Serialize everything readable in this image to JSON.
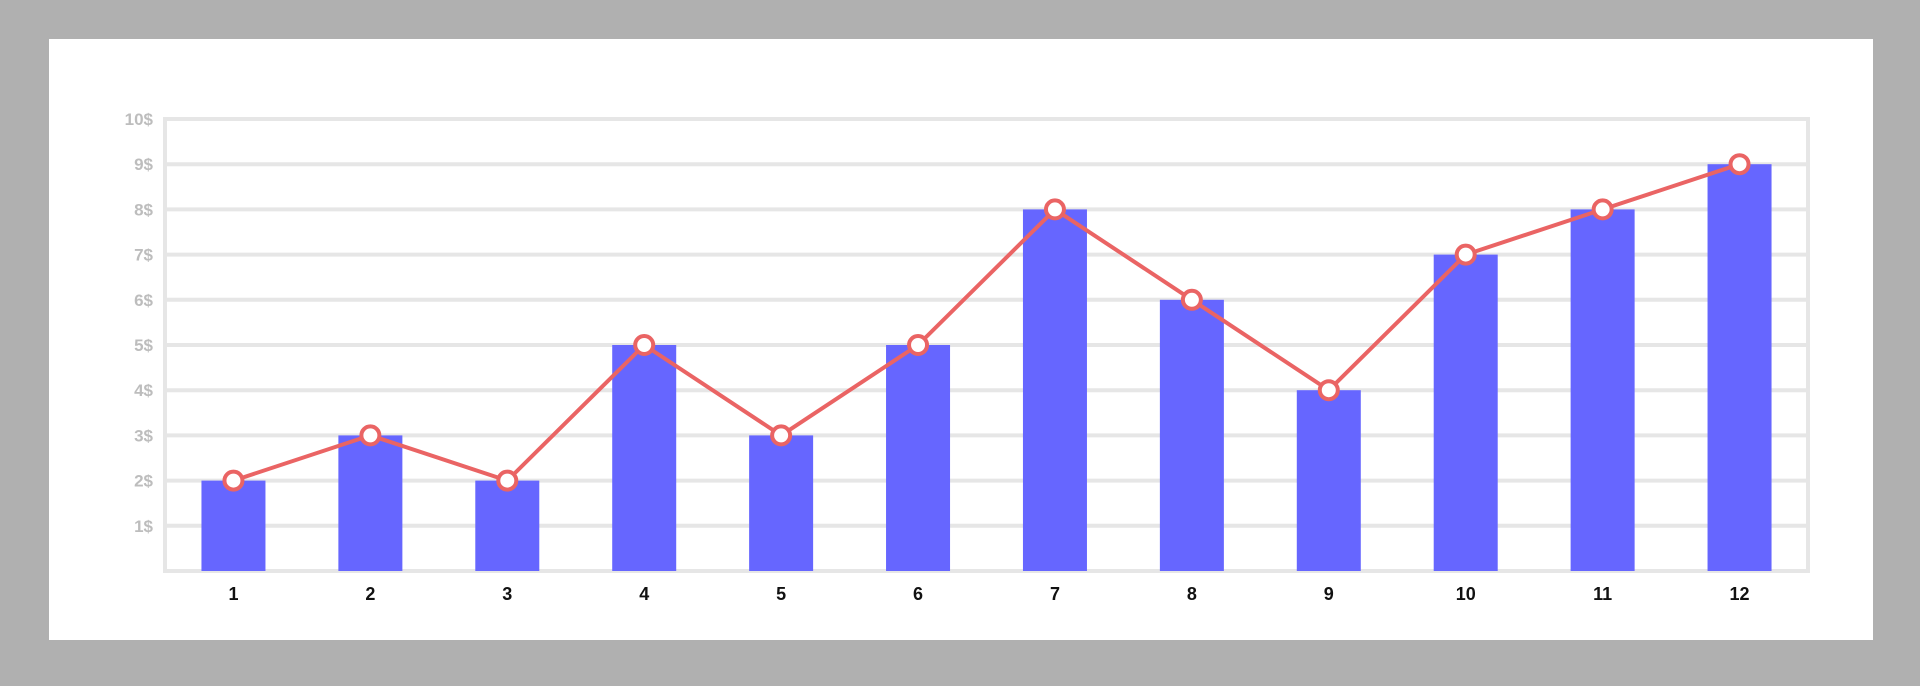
{
  "chart_data": {
    "type": "bar",
    "title": "",
    "xlabel": "",
    "ylabel": "",
    "categories": [
      "1",
      "2",
      "3",
      "4",
      "5",
      "6",
      "7",
      "8",
      "9",
      "10",
      "11",
      "12"
    ],
    "series": [
      {
        "type": "bar",
        "values": [
          2,
          3,
          2,
          5,
          3,
          5,
          8,
          6,
          4,
          7,
          8,
          9
        ]
      },
      {
        "type": "line",
        "values": [
          2,
          3,
          2,
          5,
          3,
          5,
          8,
          6,
          4,
          7,
          8,
          9
        ]
      }
    ],
    "ylim": [
      0,
      10
    ],
    "yticks": [
      "1$",
      "2$",
      "3$",
      "4$",
      "5$",
      "6$",
      "7$",
      "8$",
      "9$",
      "10$"
    ],
    "grid": true,
    "legend": "none",
    "colors": {
      "bar": "#6666ff",
      "line": "#ea6464",
      "marker_fill": "#ffffff",
      "grid": "#e6e6e6",
      "ytick": "#bdbdbd",
      "xtick": "#111111",
      "background": "#ffffff",
      "frame": "#b0b0b0"
    }
  }
}
